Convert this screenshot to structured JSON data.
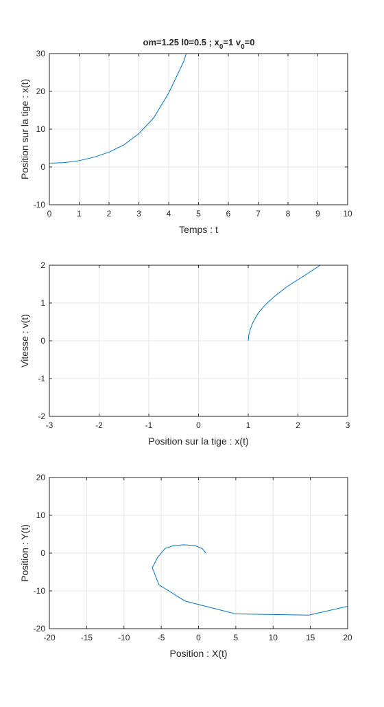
{
  "figure_title": {
    "main": "om=1.25   l0=0.5  ;  x",
    "s1": "0",
    "mid": "=1  v",
    "s2": "0",
    "end": "=0"
  },
  "colors": {
    "line": "#0072bd",
    "grid": "#e6e6e6",
    "axis": "#262626",
    "background": "#ffffff"
  },
  "chart_data": [
    {
      "type": "line",
      "title": "",
      "xlabel": "Temps : t",
      "ylabel": "Position sur la tige : x(t)",
      "xlim": [
        0,
        10
      ],
      "ylim": [
        -10,
        30
      ],
      "xticks": [
        0,
        1,
        2,
        3,
        4,
        5,
        6,
        7,
        8,
        9,
        10
      ],
      "yticks": [
        -10,
        0,
        10,
        20,
        30
      ],
      "xticklabels": [
        "0",
        "1",
        "2",
        "3",
        "4",
        "5",
        "6",
        "7",
        "8",
        "9",
        "10"
      ],
      "yticklabels": [
        "-10",
        "0",
        "10",
        "20",
        "30"
      ],
      "grid": true,
      "series": [
        {
          "x": [
            0,
            0.5,
            1,
            1.5,
            2,
            2.5,
            3,
            3.5,
            4,
            4.5,
            4.78
          ],
          "y": [
            1,
            1.16,
            1.67,
            2.6,
            3.92,
            5.86,
            8.81,
            13.02,
            19.56,
            27.86,
            34.75
          ]
        }
      ]
    },
    {
      "type": "line",
      "title": "",
      "xlabel": "Position sur la tige : x(t)",
      "ylabel": "Vitesse : v(t)",
      "xlim": [
        -3,
        3
      ],
      "ylim": [
        -2,
        2
      ],
      "xticks": [
        -3,
        -2,
        -1,
        0,
        1,
        2,
        3
      ],
      "yticks": [
        -2,
        -1,
        0,
        1,
        2
      ],
      "xticklabels": [
        "-3",
        "-2",
        "-1",
        "0",
        "1",
        "2",
        "3"
      ],
      "yticklabels": [
        "-2",
        "-1",
        "0",
        "1",
        "2"
      ],
      "grid": true,
      "series": [
        {
          "x": [
            1.0,
            1.01,
            1.04,
            1.1,
            1.2,
            1.35,
            1.55,
            1.8,
            2.1,
            2.45
          ],
          "y": [
            0,
            0.14,
            0.3,
            0.5,
            0.73,
            0.96,
            1.2,
            1.45,
            1.7,
            2.0
          ]
        }
      ]
    },
    {
      "type": "line",
      "title": "",
      "xlabel": "Position : X(t)",
      "ylabel": "Position : Y(t)",
      "xlim": [
        -20,
        20
      ],
      "ylim": [
        -20,
        20
      ],
      "xticks": [
        -20,
        -15,
        -10,
        -5,
        0,
        5,
        10,
        15,
        20
      ],
      "yticks": [
        -20,
        -10,
        0,
        10,
        20
      ],
      "xticklabels": [
        "-20",
        "-15",
        "-10",
        "-5",
        "0",
        "5",
        "10",
        "15",
        "20"
      ],
      "yticklabels": [
        "-20",
        "-10",
        "0",
        "10",
        "20"
      ],
      "grid": true,
      "series": [
        {
          "x": [
            1.0,
            0.5,
            -0.5,
            -2,
            -3.5,
            -4.5,
            -5.5,
            -6.2,
            -5.3,
            -1.8,
            5,
            14.8,
            20
          ],
          "y": [
            0,
            1.2,
            2.0,
            2.2,
            1.9,
            1.2,
            -1.2,
            -3.9,
            -8.4,
            -12.7,
            -16.1,
            -16.4,
            -14.1
          ]
        }
      ]
    }
  ]
}
